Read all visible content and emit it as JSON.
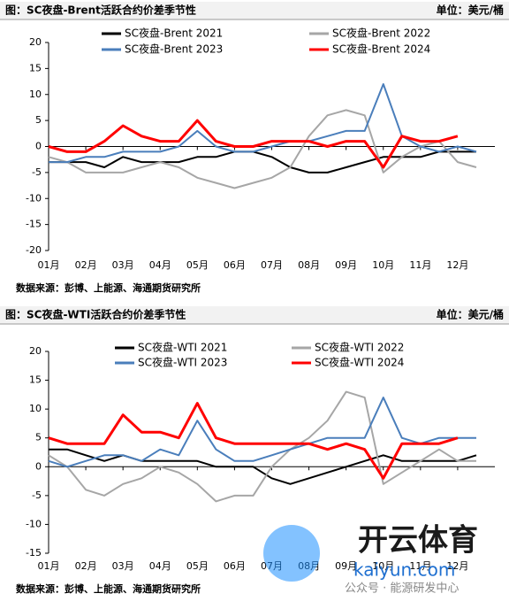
{
  "chart_data": [
    {
      "type": "line",
      "title": "图：SC夜盘-Brent活跃合约价差季节性",
      "unit": "单位：美元/桶",
      "source": "数据来源：彭博、上能源、海通期货研究所",
      "x": [
        1,
        1.5,
        2,
        2.5,
        3,
        3.5,
        4,
        4.5,
        5,
        5.5,
        6,
        6.5,
        7,
        7.5,
        8,
        8.5,
        9,
        9.5,
        10,
        10.5,
        11,
        11.5,
        12,
        12.5
      ],
      "xlim": [
        1,
        13
      ],
      "xticks": [
        {
          "value": 1,
          "label": "01月"
        },
        {
          "value": 2,
          "label": "02月"
        },
        {
          "value": 3,
          "label": "03月"
        },
        {
          "value": 4,
          "label": "04月"
        },
        {
          "value": 5,
          "label": "05月"
        },
        {
          "value": 6,
          "label": "06月"
        },
        {
          "value": 7,
          "label": "07月"
        },
        {
          "value": 8,
          "label": "08月"
        },
        {
          "value": 9,
          "label": "09月"
        },
        {
          "value": 10,
          "label": "10月"
        },
        {
          "value": 11,
          "label": "11月"
        },
        {
          "value": 12,
          "label": "12月"
        }
      ],
      "ylim": [
        -20,
        20
      ],
      "yticks": [
        -20,
        -15,
        -10,
        -5,
        0,
        5,
        10,
        15,
        20
      ],
      "series": [
        {
          "name": "SC夜盘-Brent 2021",
          "color": "#000000",
          "values": [
            -3,
            -3,
            -3,
            -4,
            -2,
            -3,
            -3,
            -3,
            -2,
            -2,
            -1,
            -1,
            -2,
            -4,
            -5,
            -5,
            -4,
            -3,
            -2,
            -2,
            -2,
            -1,
            -1,
            -1
          ]
        },
        {
          "name": "SC夜盘-Brent 2022",
          "color": "#a6a6a6",
          "values": [
            -2,
            -3,
            -5,
            -5,
            -5,
            -4,
            -3,
            -4,
            -6,
            -7,
            -8,
            -7,
            -6,
            -4,
            2,
            6,
            7,
            6,
            -5,
            -2,
            0,
            1,
            -3,
            -4
          ]
        },
        {
          "name": "SC夜盘-Brent 2023",
          "color": "#4a7ebb",
          "values": [
            -3,
            -3,
            -2,
            -2,
            -1,
            -1,
            -1,
            0,
            3,
            0,
            -1,
            -1,
            0,
            1,
            1,
            2,
            3,
            3,
            12,
            2,
            0,
            -1,
            0,
            -1
          ]
        },
        {
          "name": "SC夜盘-Brent 2024",
          "color": "#ff0000",
          "values": [
            0,
            -1,
            -1,
            1,
            4,
            2,
            1,
            1,
            5,
            1,
            0,
            0,
            1,
            1,
            1,
            0,
            1,
            1,
            -4,
            2,
            1,
            1,
            2,
            null
          ]
        }
      ]
    },
    {
      "type": "line",
      "title": "图：SC夜盘-WTI活跃合约价差季节性",
      "unit": "单位：美元/桶",
      "source": "数据来源：彭博、上能源、海通期货研究所",
      "x": [
        1,
        1.5,
        2,
        2.5,
        3,
        3.5,
        4,
        4.5,
        5,
        5.5,
        6,
        6.5,
        7,
        7.5,
        8,
        8.5,
        9,
        9.5,
        10,
        10.5,
        11,
        11.5,
        12,
        12.5
      ],
      "xlim": [
        1,
        13
      ],
      "xticks": [
        {
          "value": 1,
          "label": "01月"
        },
        {
          "value": 2,
          "label": "02月"
        },
        {
          "value": 3,
          "label": "03月"
        },
        {
          "value": 4,
          "label": "04月"
        },
        {
          "value": 5,
          "label": "05月"
        },
        {
          "value": 6,
          "label": "06月"
        },
        {
          "value": 7,
          "label": "07月"
        },
        {
          "value": 8,
          "label": "08月"
        },
        {
          "value": 9,
          "label": "09月"
        },
        {
          "value": 10,
          "label": "10月"
        },
        {
          "value": 11,
          "label": "11月"
        },
        {
          "value": 12,
          "label": "12月"
        }
      ],
      "ylim": [
        -15,
        20
      ],
      "yticks": [
        -15,
        -10,
        -5,
        0,
        5,
        10,
        15,
        20
      ],
      "series": [
        {
          "name": "SC夜盘-WTI 2021",
          "color": "#000000",
          "values": [
            3,
            3,
            2,
            1,
            2,
            1,
            1,
            1,
            1,
            0,
            0,
            0,
            -2,
            -3,
            -2,
            -1,
            0,
            1,
            2,
            1,
            1,
            1,
            1,
            2
          ]
        },
        {
          "name": "SC夜盘-WTI 2022",
          "color": "#a6a6a6",
          "values": [
            2,
            0,
            -4,
            -5,
            -3,
            -2,
            0,
            -1,
            -3,
            -6,
            -5,
            -5,
            0,
            3,
            5,
            8,
            13,
            12,
            -3,
            -1,
            1,
            3,
            1,
            1
          ]
        },
        {
          "name": "SC夜盘-WTI 2023",
          "color": "#4a7ebb",
          "values": [
            1,
            0,
            1,
            2,
            2,
            1,
            3,
            2,
            8,
            3,
            1,
            1,
            2,
            3,
            4,
            5,
            5,
            5,
            12,
            5,
            4,
            5,
            5,
            5
          ]
        },
        {
          "name": "SC夜盘-WTI 2024",
          "color": "#ff0000",
          "values": [
            5,
            4,
            4,
            4,
            9,
            6,
            6,
            5,
            11,
            5,
            4,
            4,
            4,
            4,
            4,
            3,
            4,
            3,
            -2,
            4,
            4,
            4,
            5,
            null
          ]
        }
      ]
    }
  ],
  "watermark": {
    "brand": "开云体育",
    "site": "kaiyun.com",
    "account": "公众号 · 能源研发中心"
  }
}
